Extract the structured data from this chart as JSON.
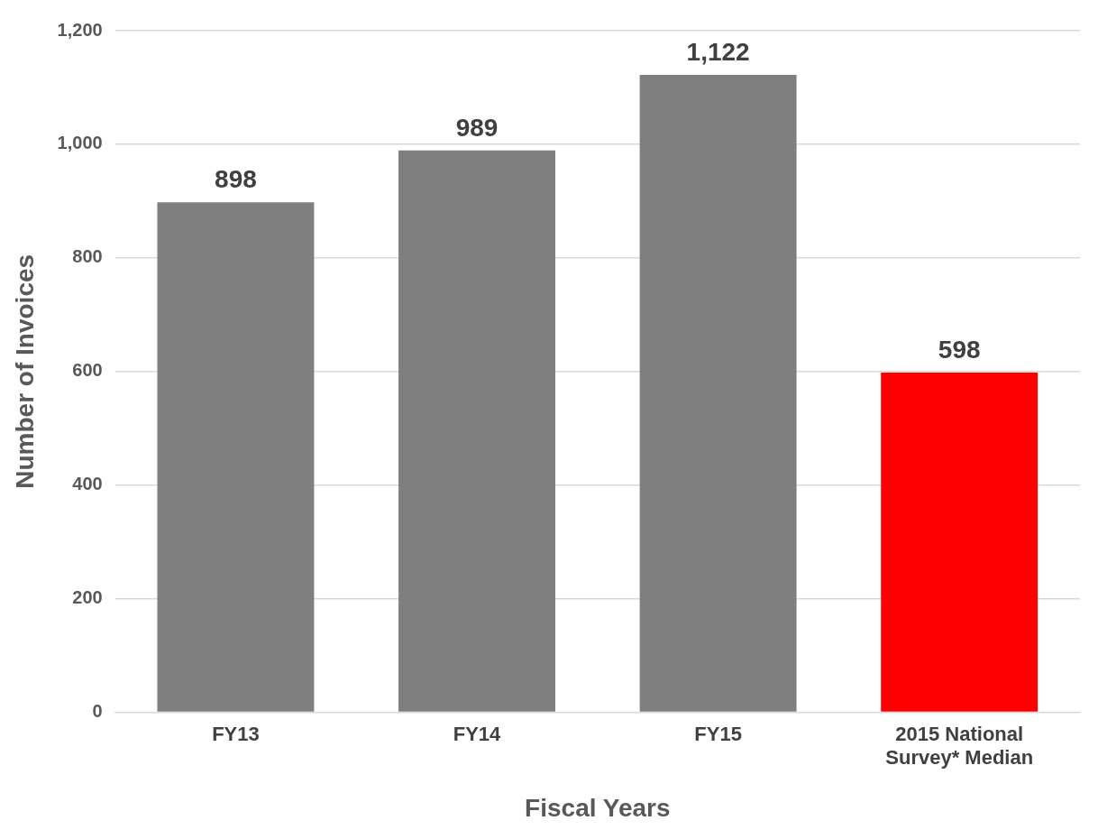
{
  "chart_data": {
    "type": "bar",
    "xlabel": "Fiscal Years",
    "ylabel": "Number of Invoices",
    "categories": [
      "FY13",
      "FY14",
      "FY15",
      "2015 National Survey* Median"
    ],
    "values": [
      898,
      989,
      1122,
      598
    ],
    "value_labels": [
      "898",
      "989",
      "1,122",
      "598"
    ],
    "colors": [
      "#7f7f7f",
      "#7f7f7f",
      "#7f7f7f",
      "#ff0000"
    ],
    "ylim": [
      0,
      1200
    ],
    "yticks": [
      0,
      200,
      400,
      600,
      800,
      {
        "value": 1000,
        "label": "1,000"
      },
      {
        "value": 1200,
        "label": "1,200"
      }
    ],
    "grid": "y",
    "legend": false
  }
}
